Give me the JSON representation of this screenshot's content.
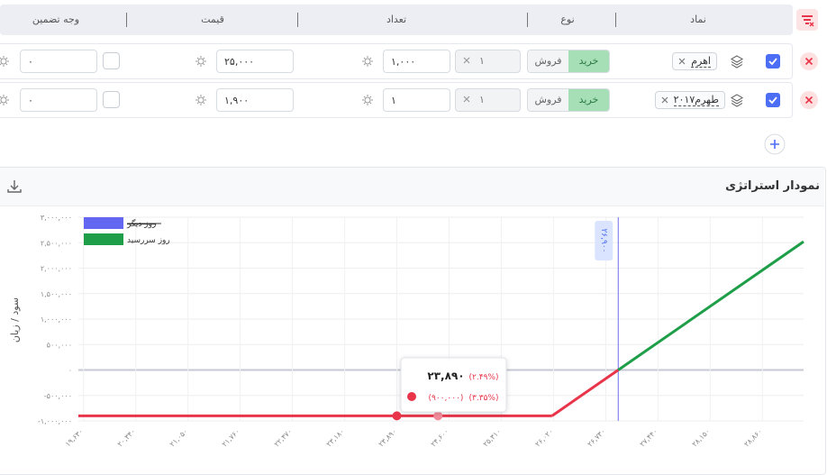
{
  "table": {
    "headers": [
      "نماد",
      "نوع",
      "تعداد",
      "قیمت",
      "وجه تضمین"
    ],
    "rows": [
      {
        "symbol": "اهرم",
        "buy": "خرید",
        "sell": "فروش",
        "multiplier": "۱",
        "quantity": "۱,۰۰۰",
        "price": "۲۵,۰۰۰",
        "margin": "۰"
      },
      {
        "symbol": "طهرم۲۰۱۷",
        "buy": "خرید",
        "sell": "فروش",
        "multiplier": "۱",
        "quantity": "۱",
        "price": "۱,۹۰۰",
        "margin": "۰"
      }
    ]
  },
  "chart_data": {
    "type": "line",
    "title": "نمودار استراتژی",
    "y_label": "سود / زیان",
    "xlim": [
      19560,
      29420
    ],
    "ylim": [
      -1000000,
      3000000
    ],
    "xticks": [
      {
        "value": 19630,
        "label": "۱۹,۶۳۰"
      },
      {
        "value": 20340,
        "label": "۲۰,۳۴۰"
      },
      {
        "value": 21050,
        "label": "۲۱,۰۵۰"
      },
      {
        "value": 21760,
        "label": "۲۱,۷۶۰"
      },
      {
        "value": 22470,
        "label": "۲۲,۴۷۰"
      },
      {
        "value": 23180,
        "label": "۲۳,۱۸۰"
      },
      {
        "value": 23890,
        "label": "۲۳,۸۹۰"
      },
      {
        "value": 24600,
        "label": "۲۴,۶۰۰"
      },
      {
        "value": 25310,
        "label": "۲۵,۳۱۰"
      },
      {
        "value": 26020,
        "label": "۲۶,۰۲۰"
      },
      {
        "value": 26730,
        "label": "۲۶,۷۳۰"
      },
      {
        "value": 27440,
        "label": "۲۷,۴۴۰"
      },
      {
        "value": 28150,
        "label": "۲۸,۱۵۰"
      },
      {
        "value": 28860,
        "label": "۲۸,۸۶۰"
      }
    ],
    "yticks": [
      {
        "value": -1000000,
        "label": "-۱,۰۰۰,۰۰۰"
      },
      {
        "value": -500000,
        "label": "-۵۰۰,۰۰۰"
      },
      {
        "value": 0,
        "label": "۰"
      },
      {
        "value": 500000,
        "label": "۵۰۰,۰۰۰"
      },
      {
        "value": 1000000,
        "label": "۱,۰۰۰,۰۰۰"
      },
      {
        "value": 1500000,
        "label": "۱,۵۰۰,۰۰۰"
      },
      {
        "value": 2000000,
        "label": "۲,۰۰۰,۰۰۰"
      },
      {
        "value": 2500000,
        "label": "۲,۵۰۰,۰۰۰"
      },
      {
        "value": 3000000,
        "label": "۳,۰۰۰,۰۰۰"
      }
    ],
    "grid": true,
    "legend_position": "top-left",
    "series": [
      {
        "name": "روز دیگر",
        "color": "#6366f1",
        "hidden": true,
        "x": [],
        "values": []
      },
      {
        "name": "روز سررسید",
        "color": "#1e9e48",
        "loss_color": "#e8354a",
        "x": [
          19560,
          26000,
          26900,
          29420
        ],
        "values": [
          -900000,
          -900000,
          0,
          2520000
        ]
      }
    ],
    "reference_line": {
      "value": 26900,
      "label": "۲۶,۹۰۰",
      "color": "#6b6ff0"
    },
    "points": [
      {
        "x": 23890,
        "y": -900000,
        "color": "#e8354a"
      },
      {
        "x": 24450,
        "y": -900000,
        "color": "#f28b9b"
      }
    ],
    "tooltip": {
      "x_label": "۲۳,۸۹۰",
      "x_change": "(۲.۴۹%)",
      "value_label": "(۹۰۰,۰۰۰)",
      "value_change": "(۳.۳۵%)"
    }
  }
}
